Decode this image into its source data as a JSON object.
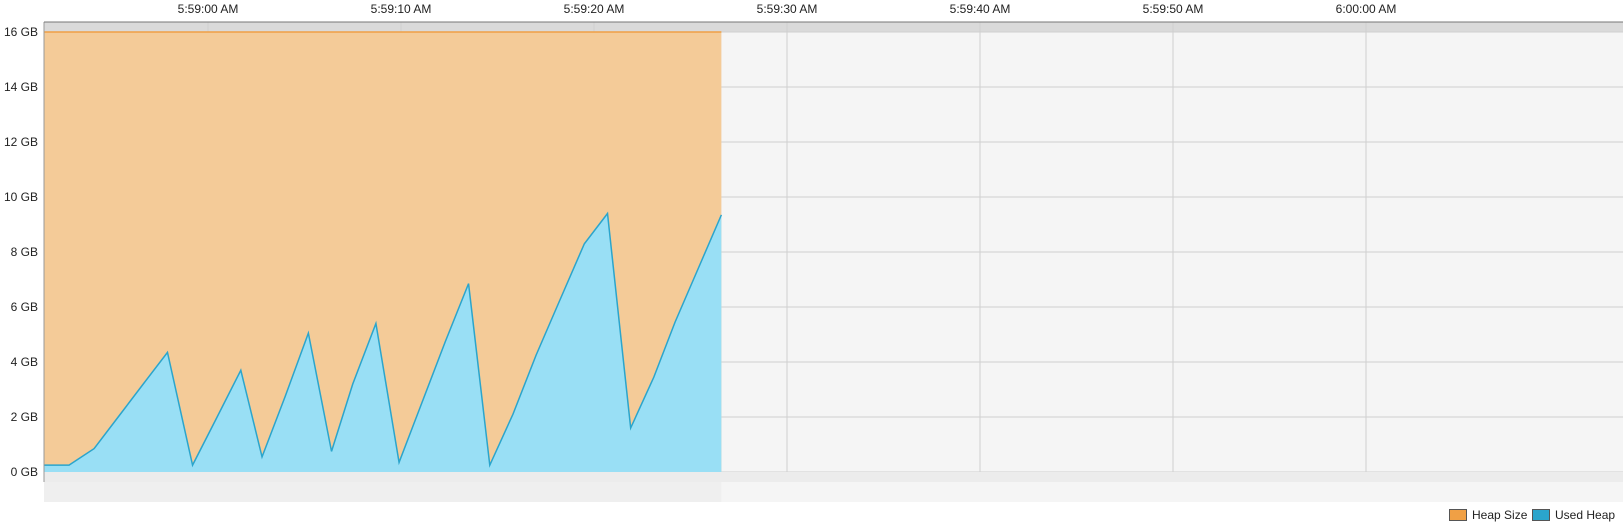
{
  "chart_data": {
    "type": "area",
    "title": "",
    "xlabel": "",
    "ylabel": "",
    "ylim": [
      0,
      16
    ],
    "x_range_seconds": [
      "5:58:52 AM",
      "6:00:05 AM"
    ],
    "x_ticks": [
      "5:59:00 AM",
      "5:59:10 AM",
      "5:59:20 AM",
      "5:59:30 AM",
      "5:59:40 AM",
      "5:59:50 AM",
      "6:00:00 AM"
    ],
    "y_ticks": [
      "0 GB",
      "2 GB",
      "4 GB",
      "6 GB",
      "8 GB",
      "10 GB",
      "12 GB",
      "14 GB",
      "16 GB"
    ],
    "x_time_start": "5:58:51.5 AM",
    "series": [
      {
        "name": "Heap Size",
        "color": "#f0a045",
        "fill": "#f4cb98",
        "x": [
          "5:58:51.5",
          "5:59:26.6"
        ],
        "values": [
          16,
          16
        ]
      },
      {
        "name": "Used Heap",
        "color": "#2ba5cc",
        "fill": "#99dff5",
        "x": [
          "5:58:51.5",
          "5:58:52.8",
          "5:58:54.1",
          "5:58:55.4",
          "5:58:56.7",
          "5:58:57.9",
          "5:58:59.2",
          "5:59:00.4",
          "5:59:01.7",
          "5:59:02.8",
          "5:59:04.0",
          "5:59:05.2",
          "5:59:06.4",
          "5:59:07.5",
          "5:59:08.7",
          "5:59:09.9",
          "5:59:11.1",
          "5:59:12.3",
          "5:59:13.5",
          "5:59:14.6",
          "5:59:15.8",
          "5:59:17.0",
          "5:59:18.2",
          "5:59:19.5",
          "5:59:20.7",
          "5:59:21.9",
          "5:59:23.1",
          "5:59:24.2",
          "5:59:25.4",
          "5:59:26.6"
        ],
        "values": [
          0.25,
          0.25,
          0.85,
          2.05,
          3.25,
          4.35,
          0.25,
          1.9,
          3.7,
          0.55,
          2.75,
          5.05,
          0.75,
          3.2,
          5.4,
          0.35,
          2.55,
          4.75,
          6.85,
          0.25,
          2.1,
          4.25,
          6.2,
          8.3,
          9.4,
          1.6,
          3.45,
          5.45,
          7.4,
          9.35
        ]
      }
    ],
    "legend": [
      "Heap Size",
      "Used Heap"
    ],
    "legend_position": "bottom-right",
    "grid": true
  }
}
